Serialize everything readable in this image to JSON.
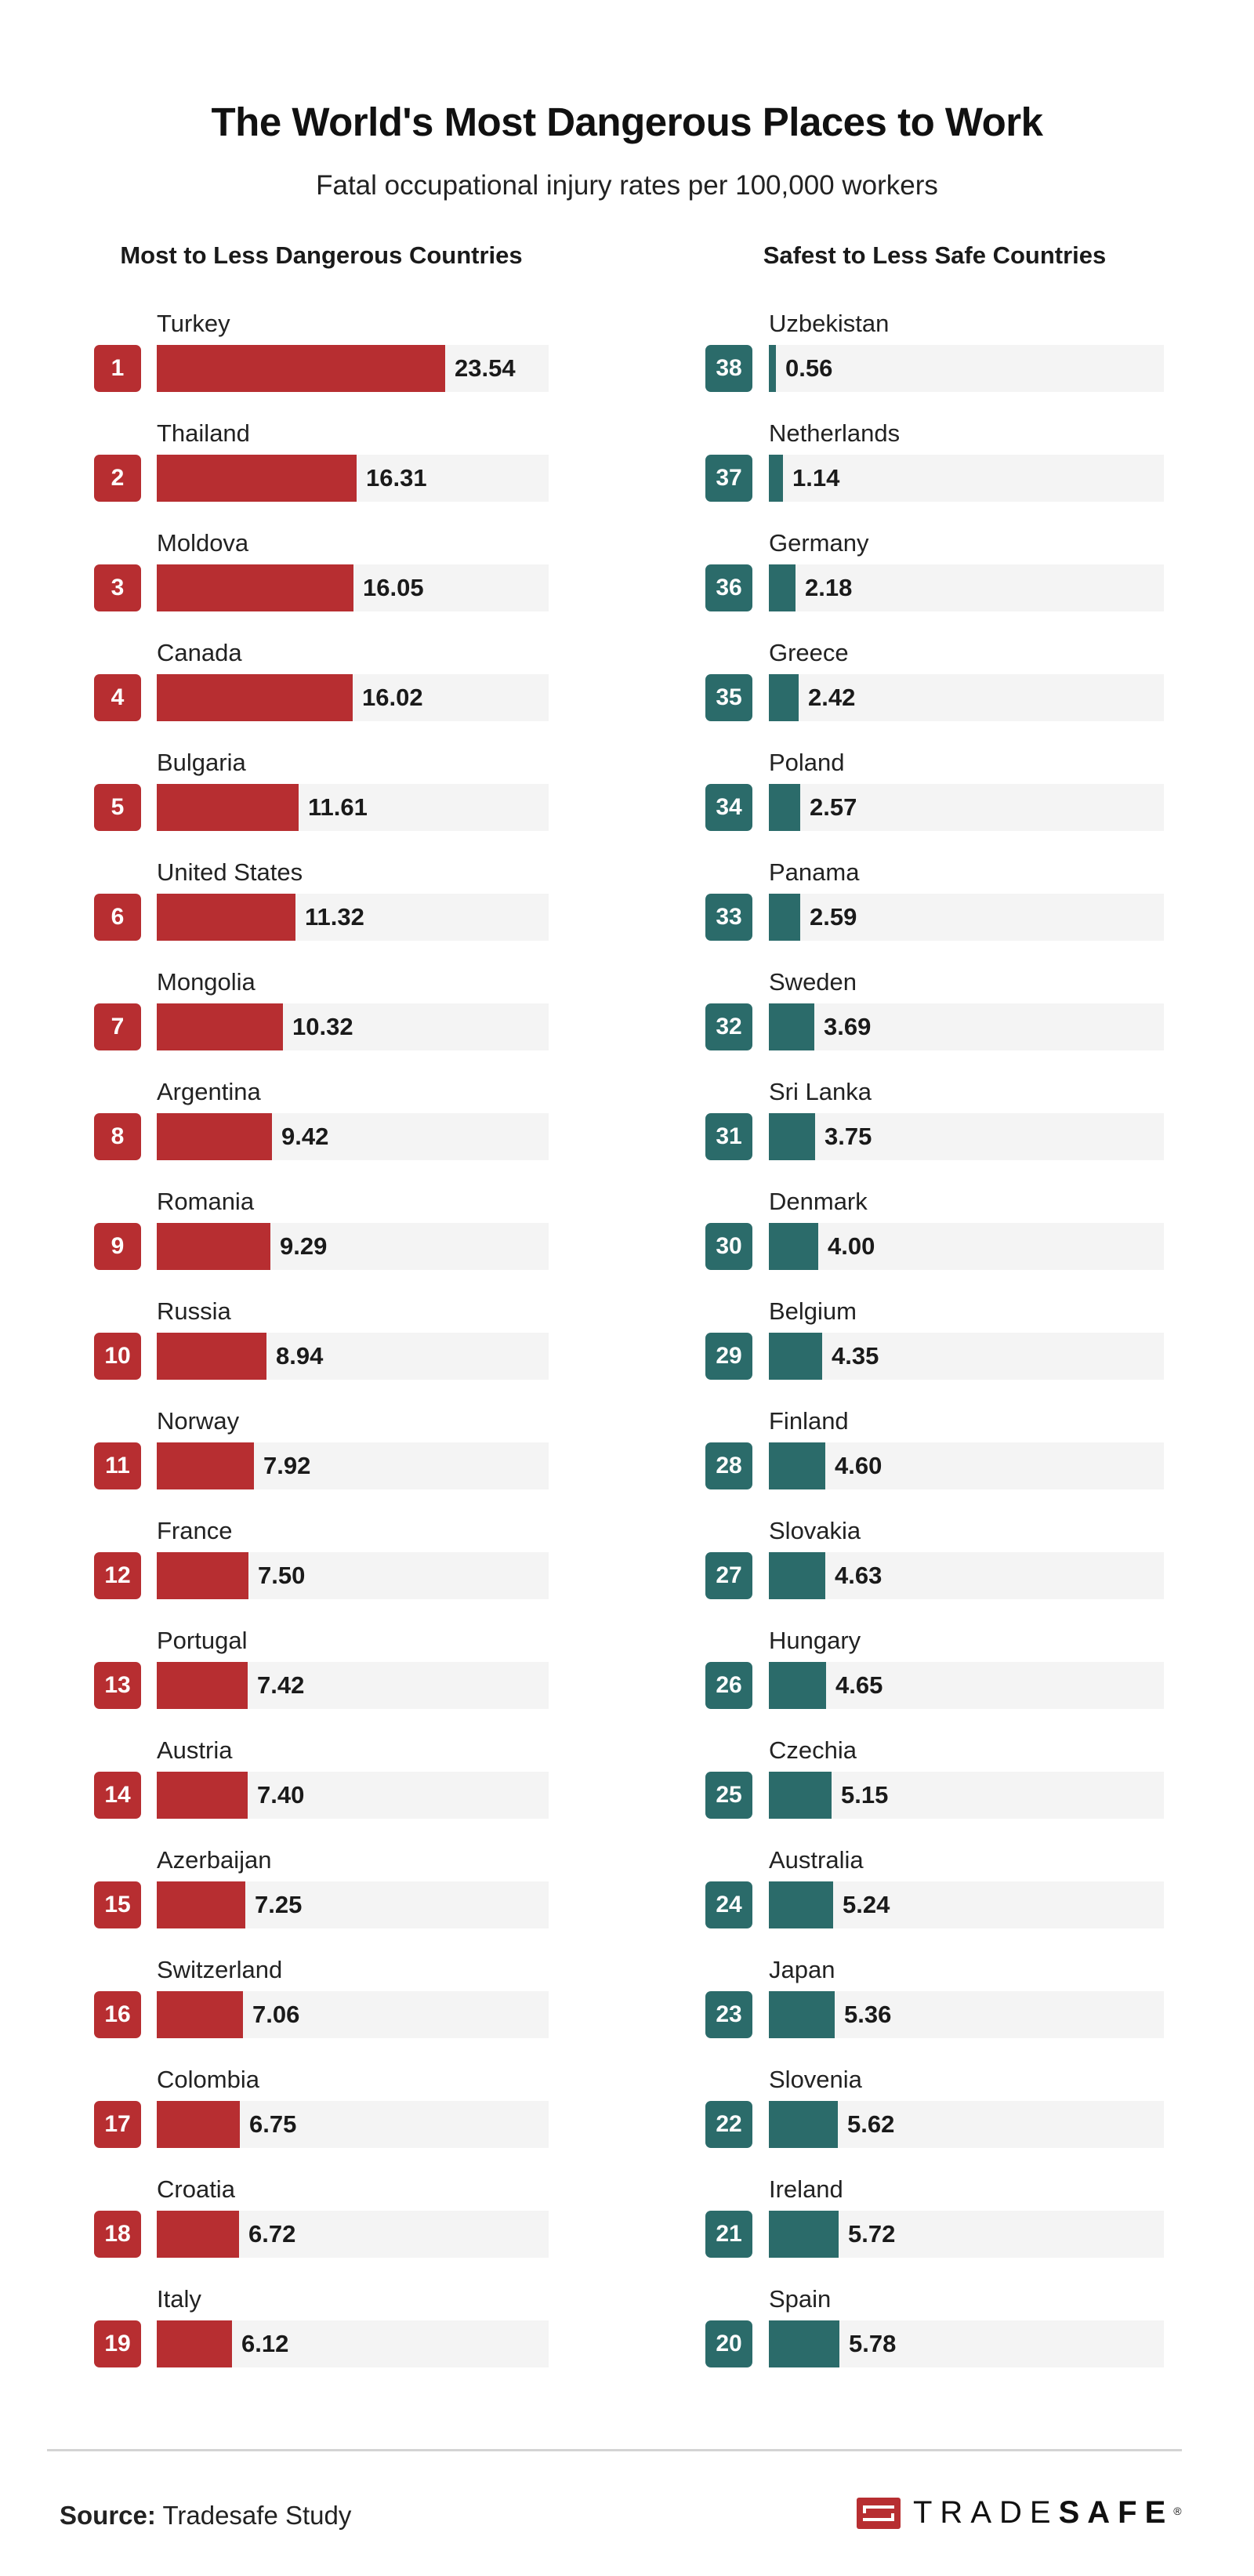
{
  "header": {
    "title": "The World's Most Dangerous Places to Work",
    "subtitle": "Fatal occupational injury rates per 100,000 workers"
  },
  "columns": {
    "left_title": "Most to Less Dangerous Countries",
    "right_title": "Safest to Less Safe Countries"
  },
  "colors": {
    "dangerous": "#b72e31",
    "safe": "#2b6b6a",
    "track": "#f4f4f4"
  },
  "footer": {
    "source_label": "Source:",
    "source_value": "Tradesafe Study",
    "logo_light": "TRADE",
    "logo_bold": "SAFE",
    "logo_mark": "®"
  },
  "chart_data": [
    {
      "type": "bar",
      "orientation": "horizontal",
      "title": "Most to Less Dangerous Countries",
      "xlabel": "Fatal occupational injury rates per 100,000 workers",
      "ylabel": "",
      "xlim": [
        0,
        32
      ],
      "grid": false,
      "color": "#b72e31",
      "ranks": [
        1,
        2,
        3,
        4,
        5,
        6,
        7,
        8,
        9,
        10,
        11,
        12,
        13,
        14,
        15,
        16,
        17,
        18,
        19
      ],
      "categories": [
        "Turkey",
        "Thailand",
        "Moldova",
        "Canada",
        "Bulgaria",
        "United States",
        "Mongolia",
        "Argentina",
        "Romania",
        "Russia",
        "Norway",
        "France",
        "Portugal",
        "Austria",
        "Azerbaijan",
        "Switzerland",
        "Colombia",
        "Croatia",
        "Italy"
      ],
      "values": [
        23.54,
        16.31,
        16.05,
        16.02,
        11.61,
        11.32,
        10.32,
        9.42,
        9.29,
        8.94,
        7.92,
        7.5,
        7.42,
        7.4,
        7.25,
        7.06,
        6.75,
        6.72,
        6.12
      ],
      "labels": [
        "23.54",
        "16.31",
        "16.05",
        "16.02",
        "11.61",
        "11.32",
        "10.32",
        "9.42",
        "9.29",
        "8.94",
        "7.92",
        "7.50",
        "7.42",
        "7.40",
        "7.25",
        "7.06",
        "6.75",
        "6.72",
        "6.12"
      ]
    },
    {
      "type": "bar",
      "orientation": "horizontal",
      "title": "Safest to Less Safe Countries",
      "xlabel": "Fatal occupational injury rates per 100,000 workers",
      "ylabel": "",
      "xlim": [
        0,
        32
      ],
      "grid": false,
      "color": "#2b6b6a",
      "ranks": [
        38,
        37,
        36,
        35,
        34,
        33,
        32,
        31,
        30,
        29,
        28,
        27,
        26,
        25,
        24,
        23,
        22,
        21,
        20
      ],
      "categories": [
        "Uzbekistan",
        "Netherlands",
        "Germany",
        "Greece",
        "Poland",
        "Panama",
        "Sweden",
        "Sri Lanka",
        "Denmark",
        "Belgium",
        "Finland",
        "Slovakia",
        "Hungary",
        "Czechia",
        "Australia",
        "Japan",
        "Slovenia",
        "Ireland",
        "Spain"
      ],
      "values": [
        0.56,
        1.14,
        2.18,
        2.42,
        2.57,
        2.59,
        3.69,
        3.75,
        4.0,
        4.35,
        4.6,
        4.63,
        4.65,
        5.15,
        5.24,
        5.36,
        5.62,
        5.72,
        5.78
      ],
      "labels": [
        "0.56",
        "1.14",
        "2.18",
        "2.42",
        "2.57",
        "2.59",
        "3.69",
        "3.75",
        "4.00",
        "4.35",
        "4.60",
        "4.63",
        "4.65",
        "5.15",
        "5.24",
        "5.36",
        "5.62",
        "5.72",
        "5.78"
      ]
    }
  ]
}
